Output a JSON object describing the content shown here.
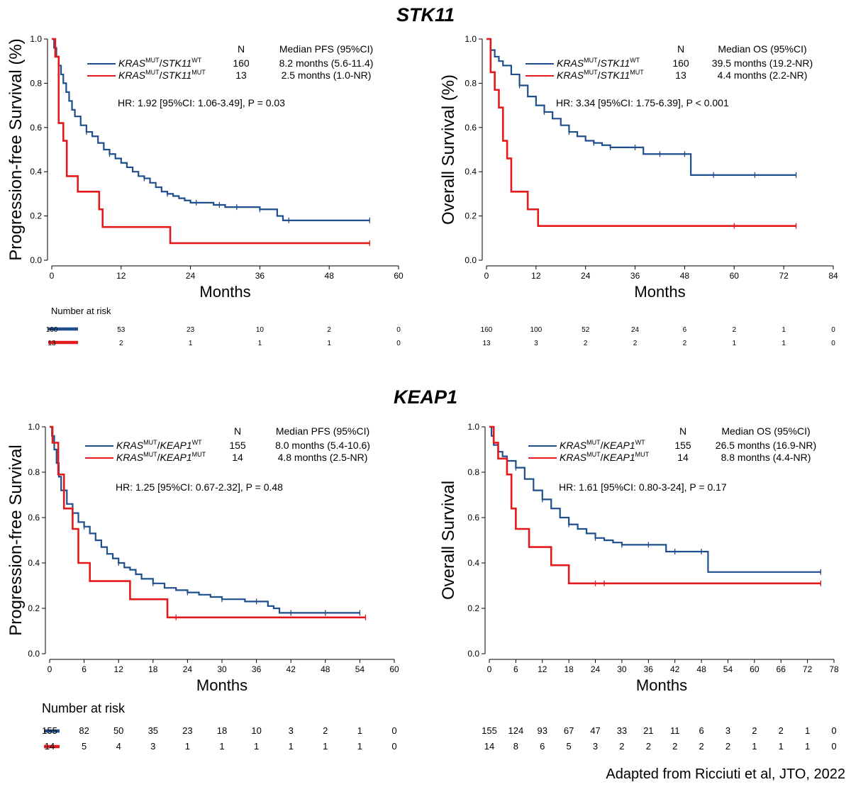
{
  "sections": [
    {
      "title": "STK11"
    },
    {
      "title": "KEAP1"
    }
  ],
  "citation": "Adapted from Ricciuti et al, JTO, 2022",
  "colors": {
    "wt": "#1f4e8c",
    "mut": "#e31a1c"
  },
  "chart_data": [
    {
      "type": "line",
      "subtype": "kaplan-meier",
      "ylabel": "Progression-free Survival (%)",
      "xlabel": "Months",
      "xlim": [
        0,
        60
      ],
      "xticks": [
        0,
        12,
        24,
        36,
        48,
        60
      ],
      "ylim": [
        0,
        1
      ],
      "yticks": [
        "0.0",
        "0.2",
        "0.4",
        "0.6",
        "0.8",
        "1.0"
      ],
      "legend": {
        "n_header": "N",
        "stat_header": "Median PFS (95%CI)"
      },
      "hr_text": "HR: 1.92 [95%CI: 1.06-3.49], P = 0.03",
      "series": [
        {
          "gene_a": "KRAS",
          "sup_a": "MUT",
          "gene_b": "STK11",
          "sup_b": "WT",
          "n": "160",
          "stat": "8.2 months (5.6-11.4)",
          "color_key": "wt",
          "x": [
            0,
            0.4,
            0.8,
            1.2,
            1.6,
            2.0,
            2.5,
            3,
            3.5,
            4,
            5,
            6,
            7,
            8,
            9,
            10,
            11,
            12,
            13,
            14,
            15,
            16,
            17,
            18,
            19,
            20,
            21,
            22,
            23,
            24,
            26,
            28,
            30,
            32,
            34,
            36,
            38,
            39,
            40,
            42,
            44,
            48,
            52,
            55
          ],
          "y": [
            1.0,
            0.96,
            0.92,
            0.88,
            0.84,
            0.8,
            0.76,
            0.72,
            0.68,
            0.65,
            0.61,
            0.58,
            0.56,
            0.53,
            0.5,
            0.48,
            0.46,
            0.44,
            0.42,
            0.4,
            0.38,
            0.37,
            0.35,
            0.33,
            0.31,
            0.3,
            0.29,
            0.28,
            0.27,
            0.26,
            0.26,
            0.25,
            0.24,
            0.24,
            0.24,
            0.23,
            0.23,
            0.2,
            0.18,
            0.18,
            0.18,
            0.18,
            0.18,
            0.18
          ],
          "censor_x": [
            6,
            10,
            16,
            20,
            25,
            29,
            32,
            36,
            41,
            55
          ]
        },
        {
          "gene_a": "KRAS",
          "sup_a": "MUT",
          "gene_b": "STK11",
          "sup_b": "MUT",
          "n": "13",
          "stat": "2.5 months (1.0-NR)",
          "color_key": "mut",
          "x": [
            0,
            0.6,
            1.2,
            2.0,
            2.6,
            4.5,
            8.2,
            8.8,
            20.5,
            55
          ],
          "y": [
            1.0,
            0.92,
            0.62,
            0.54,
            0.38,
            0.31,
            0.23,
            0.15,
            0.077,
            0.077
          ],
          "censor_x": [
            55
          ]
        }
      ],
      "risk": {
        "label": "Number at risk",
        "rows": [
          [
            "160",
            "53",
            "23",
            "10",
            "2",
            "0"
          ],
          [
            "13",
            "2",
            "1",
            "1",
            "1",
            "0"
          ]
        ]
      }
    },
    {
      "type": "line",
      "subtype": "kaplan-meier",
      "ylabel": "Overall Survival (%)",
      "xlabel": "Months",
      "xlim": [
        0,
        84
      ],
      "xticks": [
        0,
        12,
        24,
        36,
        48,
        60,
        72,
        84
      ],
      "ylim": [
        0,
        1
      ],
      "yticks": [
        "0.0",
        "0.2",
        "0.4",
        "0.6",
        "0.8",
        "1.0"
      ],
      "legend": {
        "n_header": "N",
        "stat_header": "Median OS (95%CI)"
      },
      "hr_text": "HR: 3.34 [95%CI: 1.75-6.39], P < 0.001",
      "series": [
        {
          "gene_a": "KRAS",
          "sup_a": "MUT",
          "gene_b": "STK11",
          "sup_b": "WT",
          "n": "160",
          "stat": "39.5 months (19.2-NR)",
          "color_key": "wt",
          "x": [
            0,
            1,
            2,
            3,
            4,
            6,
            8,
            10,
            12,
            14,
            16,
            18,
            20,
            22,
            24,
            26,
            28,
            30,
            34,
            38,
            46,
            49.5,
            60,
            75
          ],
          "y": [
            1.0,
            0.95,
            0.92,
            0.9,
            0.88,
            0.84,
            0.79,
            0.74,
            0.7,
            0.67,
            0.64,
            0.61,
            0.58,
            0.56,
            0.54,
            0.53,
            0.52,
            0.51,
            0.51,
            0.48,
            0.48,
            0.385,
            0.385,
            0.385
          ],
          "censor_x": [
            8,
            14,
            20,
            26,
            30,
            36,
            42,
            48,
            55,
            65,
            75
          ]
        },
        {
          "gene_a": "KRAS",
          "sup_a": "MUT",
          "gene_b": "STK11",
          "sup_b": "MUT",
          "n": "13",
          "stat": "4.4 months (2.2-NR)",
          "color_key": "mut",
          "x": [
            0,
            1,
            2,
            3,
            4,
            5,
            6,
            10,
            12.5,
            75
          ],
          "y": [
            1.0,
            0.85,
            0.77,
            0.69,
            0.54,
            0.46,
            0.31,
            0.23,
            0.155,
            0.155
          ],
          "censor_x": [
            60,
            75
          ]
        }
      ],
      "risk": {
        "label": "Number at risk",
        "rows": [
          [
            "160",
            "100",
            "52",
            "24",
            "6",
            "2",
            "1",
            "0"
          ],
          [
            "13",
            "3",
            "2",
            "2",
            "2",
            "1",
            "1",
            "0"
          ]
        ]
      }
    },
    {
      "type": "line",
      "subtype": "kaplan-meier",
      "ylabel": "Progression-free Survival",
      "xlabel": "Months",
      "xlim": [
        0,
        60
      ],
      "xticks": [
        0,
        6,
        12,
        18,
        24,
        30,
        36,
        42,
        48,
        54,
        60
      ],
      "ylim": [
        0,
        1
      ],
      "yticks": [
        "0.0",
        "0.2",
        "0.4",
        "0.6",
        "0.8",
        "1.0"
      ],
      "legend": {
        "n_header": "N",
        "stat_header": "Median PFS (95%CI)"
      },
      "hr_text": "HR: 1.25 [95%CI: 0.67-2.32], P = 0.48",
      "series": [
        {
          "gene_a": "KRAS",
          "sup_a": "MUT",
          "gene_b": "KEAP1",
          "sup_b": "WT",
          "n": "155",
          "stat": "8.0 months (5.4-10.6)",
          "color_key": "wt",
          "x": [
            0,
            0.4,
            0.8,
            1.2,
            1.6,
            2,
            3,
            4,
            5,
            6,
            7,
            8,
            9,
            10,
            11,
            12,
            13,
            14,
            15,
            16,
            18,
            20,
            22,
            24,
            26,
            28,
            30,
            34,
            38,
            39,
            40,
            44,
            48,
            54
          ],
          "y": [
            1.0,
            0.96,
            0.9,
            0.84,
            0.78,
            0.72,
            0.66,
            0.62,
            0.58,
            0.56,
            0.53,
            0.5,
            0.47,
            0.44,
            0.42,
            0.4,
            0.38,
            0.37,
            0.35,
            0.33,
            0.31,
            0.29,
            0.28,
            0.27,
            0.26,
            0.25,
            0.24,
            0.23,
            0.21,
            0.2,
            0.18,
            0.18,
            0.18,
            0.18
          ],
          "censor_x": [
            6,
            12,
            18,
            24,
            30,
            36,
            42,
            48,
            54
          ]
        },
        {
          "gene_a": "KRAS",
          "sup_a": "MUT",
          "gene_b": "KEAP1",
          "sup_b": "MUT",
          "n": "14",
          "stat": "4.8 months (2.5-NR)",
          "color_key": "mut",
          "x": [
            0,
            0.5,
            1.5,
            2.5,
            4.0,
            5.0,
            7.0,
            14.0,
            20.5,
            55
          ],
          "y": [
            1.0,
            0.93,
            0.79,
            0.64,
            0.55,
            0.4,
            0.32,
            0.24,
            0.16,
            0.16
          ],
          "censor_x": [
            22,
            55
          ]
        }
      ],
      "risk": {
        "label": "Number at risk",
        "rows": [
          [
            "155",
            "82",
            "50",
            "35",
            "23",
            "18",
            "10",
            "3",
            "2",
            "1",
            "0"
          ],
          [
            "14",
            "5",
            "4",
            "3",
            "1",
            "1",
            "1",
            "1",
            "1",
            "1",
            "0"
          ]
        ]
      }
    },
    {
      "type": "line",
      "subtype": "kaplan-meier",
      "ylabel": "Overall Survival",
      "xlabel": "Months",
      "xlim": [
        0,
        78
      ],
      "xticks": [
        0,
        6,
        12,
        18,
        24,
        30,
        36,
        42,
        48,
        54,
        60,
        66,
        72,
        78
      ],
      "ylim": [
        0,
        1
      ],
      "yticks": [
        "0.0",
        "0.2",
        "0.4",
        "0.6",
        "0.8",
        "1.0"
      ],
      "legend": {
        "n_header": "N",
        "stat_header": "Median OS (95%CI)"
      },
      "hr_text": "HR: 1.61 [95%CI: 0.80-3-24], P = 0.17",
      "series": [
        {
          "gene_a": "KRAS",
          "sup_a": "MUT",
          "gene_b": "KEAP1",
          "sup_b": "WT",
          "n": "155",
          "stat": "26.5 months (16.9-NR)",
          "color_key": "wt",
          "x": [
            0,
            0.5,
            1,
            2,
            3,
            4,
            6,
            8,
            10,
            12,
            14,
            16,
            18,
            20,
            22,
            24,
            26,
            28,
            30,
            34,
            38,
            40,
            46,
            49.5,
            60,
            75
          ],
          "y": [
            1.0,
            0.96,
            0.92,
            0.89,
            0.87,
            0.85,
            0.82,
            0.77,
            0.72,
            0.68,
            0.64,
            0.6,
            0.57,
            0.55,
            0.53,
            0.51,
            0.5,
            0.49,
            0.48,
            0.48,
            0.48,
            0.45,
            0.45,
            0.36,
            0.36,
            0.36
          ],
          "censor_x": [
            6,
            12,
            18,
            24,
            30,
            36,
            42,
            48,
            75
          ]
        },
        {
          "gene_a": "KRAS",
          "sup_a": "MUT",
          "gene_b": "KEAP1",
          "sup_b": "MUT",
          "n": "14",
          "stat": "8.8 months (4.4-NR)",
          "color_key": "mut",
          "x": [
            0,
            1,
            2,
            3,
            4,
            5,
            6,
            9,
            14,
            18,
            75
          ],
          "y": [
            1.0,
            0.93,
            0.86,
            0.86,
            0.79,
            0.64,
            0.55,
            0.47,
            0.39,
            0.31,
            0.31
          ],
          "censor_x": [
            24,
            26,
            75
          ]
        }
      ],
      "risk": {
        "label": "Number at risk",
        "rows": [
          [
            "155",
            "124",
            "93",
            "67",
            "47",
            "33",
            "21",
            "11",
            "6",
            "3",
            "2",
            "2",
            "1",
            "0"
          ],
          [
            "14",
            "8",
            "6",
            "5",
            "3",
            "2",
            "2",
            "2",
            "2",
            "2",
            "1",
            "1",
            "1",
            "0"
          ]
        ]
      }
    }
  ]
}
